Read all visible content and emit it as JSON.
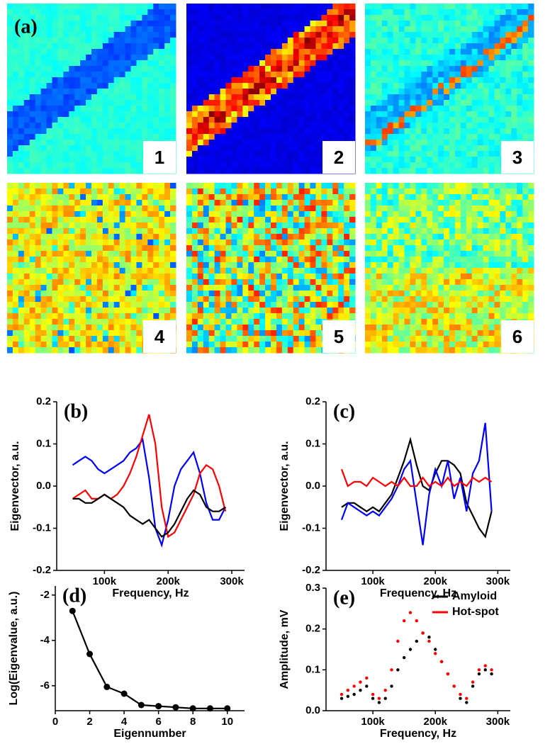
{
  "panel_a": {
    "label": "(a)",
    "tiles": [
      "1",
      "2",
      "3",
      "4",
      "5",
      "6"
    ]
  },
  "chart_data": [
    {
      "type": "line",
      "label": "(b)",
      "xlabel": "Frequency, Hz",
      "ylabel": "Eigenvector, a.u.",
      "x": [
        50000,
        60000,
        70000,
        80000,
        90000,
        100000,
        110000,
        120000,
        130000,
        140000,
        150000,
        160000,
        170000,
        180000,
        190000,
        200000,
        210000,
        220000,
        230000,
        240000,
        250000,
        260000,
        270000,
        280000,
        290000
      ],
      "series": [
        {
          "color": "#0000ff",
          "values": [
            0.05,
            0.06,
            0.07,
            0.06,
            0.04,
            0.03,
            0.04,
            0.05,
            0.06,
            0.08,
            0.09,
            0.11,
            0.02,
            -0.1,
            -0.14,
            -0.08,
            0.0,
            0.04,
            0.06,
            0.08,
            0.03,
            -0.04,
            -0.08,
            -0.08,
            -0.05
          ]
        },
        {
          "color": "#ff0000",
          "values": [
            -0.03,
            -0.02,
            -0.01,
            -0.03,
            -0.03,
            -0.02,
            -0.03,
            -0.02,
            0.0,
            0.03,
            0.07,
            0.12,
            0.17,
            0.1,
            -0.05,
            -0.12,
            -0.11,
            -0.08,
            -0.05,
            -0.02,
            0.03,
            0.05,
            0.04,
            0.0,
            -0.06
          ]
        },
        {
          "color": "#000000",
          "values": [
            -0.03,
            -0.03,
            -0.04,
            -0.04,
            -0.03,
            -0.02,
            -0.03,
            -0.04,
            -0.05,
            -0.07,
            -0.08,
            -0.09,
            -0.08,
            -0.1,
            -0.12,
            -0.11,
            -0.09,
            -0.06,
            -0.03,
            -0.01,
            -0.02,
            -0.05,
            -0.06,
            -0.06,
            -0.05
          ]
        }
      ],
      "xlim": [
        25000,
        320000
      ],
      "ylim": [
        -0.2,
        0.2
      ],
      "xticks": [
        {
          "value": 100000,
          "label": "100k"
        },
        {
          "value": 200000,
          "label": "200k"
        },
        {
          "value": 300000,
          "label": "300k"
        }
      ],
      "yticks": [
        -0.2,
        -0.1,
        {
          "value": 0,
          "label": "0.0"
        },
        0.1,
        0.2
      ]
    },
    {
      "type": "line",
      "label": "(c)",
      "xlabel": "Frequency, Hz",
      "ylabel": "Eigenvector, a.u.",
      "x": [
        50000,
        60000,
        70000,
        80000,
        90000,
        100000,
        110000,
        120000,
        130000,
        140000,
        150000,
        160000,
        170000,
        180000,
        190000,
        200000,
        210000,
        220000,
        230000,
        240000,
        250000,
        260000,
        270000,
        280000,
        290000
      ],
      "series": [
        {
          "color": "#000000",
          "values": [
            -0.05,
            -0.04,
            -0.04,
            -0.05,
            -0.06,
            -0.05,
            -0.06,
            -0.04,
            -0.02,
            0.02,
            0.06,
            0.11,
            0.05,
            0.0,
            -0.01,
            0.03,
            0.06,
            0.06,
            0.05,
            0.03,
            -0.04,
            -0.07,
            -0.1,
            -0.12,
            -0.06
          ]
        },
        {
          "color": "#0000ff",
          "values": [
            -0.08,
            -0.04,
            -0.05,
            -0.06,
            -0.07,
            -0.06,
            -0.07,
            -0.05,
            -0.03,
            0.0,
            0.04,
            0.06,
            -0.04,
            -0.14,
            -0.02,
            0.04,
            0.0,
            0.06,
            -0.03,
            0.02,
            -0.06,
            0.03,
            0.06,
            0.15,
            -0.06
          ]
        },
        {
          "color": "#ff0000",
          "values": [
            0.04,
            0.0,
            0.01,
            0.01,
            0.0,
            0.02,
            0.01,
            0.0,
            0.01,
            0.0,
            0.02,
            0.0,
            0.0,
            0.02,
            0.0,
            0.01,
            0.0,
            0.02,
            0.0,
            0.01,
            0.0,
            0.02,
            0.01,
            0.02,
            0.01
          ]
        }
      ],
      "xlim": [
        25000,
        320000
      ],
      "ylim": [
        -0.2,
        0.2
      ],
      "xticks": [
        {
          "value": 100000,
          "label": "100k"
        },
        {
          "value": 200000,
          "label": "200k"
        },
        {
          "value": 300000,
          "label": "300k"
        }
      ],
      "yticks": [
        -0.2,
        -0.1,
        {
          "value": 0,
          "label": "0.0"
        },
        0.1,
        0.2
      ]
    },
    {
      "type": "line",
      "markers": true,
      "label": "(d)",
      "xlabel": "Eigennumber",
      "ylabel": "Log(Eigenvalue, a.u.)",
      "x": [
        1,
        2,
        3,
        4,
        5,
        6,
        7,
        8,
        9,
        10
      ],
      "series": [
        {
          "color": "#000000",
          "values": [
            -2.7,
            -4.6,
            -6.05,
            -6.35,
            -6.85,
            -6.9,
            -6.95,
            -7.0,
            -7.0,
            -7.0
          ]
        }
      ],
      "xlim": [
        0,
        11
      ],
      "ylim": [
        -7.1,
        -1.6
      ],
      "xticks": [
        0,
        2,
        4,
        6,
        8,
        10
      ],
      "yticks": [
        -6,
        -4,
        -2
      ]
    },
    {
      "type": "scatter",
      "label": "(e)",
      "xlabel": "Frequency, Hz",
      "ylabel": "Amplitude, mV",
      "legend": "upper right",
      "x": [
        50000,
        60000,
        70000,
        80000,
        90000,
        100000,
        110000,
        120000,
        130000,
        140000,
        150000,
        160000,
        170000,
        180000,
        190000,
        200000,
        210000,
        220000,
        230000,
        240000,
        250000,
        260000,
        270000,
        280000,
        290000
      ],
      "series": [
        {
          "name": "Amyloid",
          "color": "#000000",
          "values": [
            0.03,
            0.035,
            0.04,
            0.05,
            0.06,
            0.03,
            0.02,
            0.03,
            0.06,
            0.1,
            0.13,
            0.15,
            0.17,
            0.19,
            0.18,
            0.15,
            0.12,
            0.09,
            0.06,
            0.03,
            0.02,
            0.06,
            0.09,
            0.1,
            0.09
          ]
        },
        {
          "name": "Hot-spot",
          "color": "#ff0000",
          "values": [
            0.04,
            0.05,
            0.06,
            0.07,
            0.08,
            0.04,
            0.03,
            0.05,
            0.1,
            0.17,
            0.22,
            0.24,
            0.22,
            0.19,
            0.17,
            0.14,
            0.12,
            0.09,
            0.06,
            0.04,
            0.03,
            0.07,
            0.1,
            0.11,
            0.1
          ]
        }
      ],
      "xlim": [
        25000,
        320000
      ],
      "ylim": [
        0,
        0.3
      ],
      "xticks": [
        {
          "value": 100000,
          "label": "100k"
        },
        {
          "value": 200000,
          "label": "200k"
        },
        {
          "value": 300000,
          "label": "300k"
        }
      ],
      "yticks": [
        {
          "value": 0,
          "label": "0.0"
        },
        0.1,
        0.2,
        0.3
      ]
    }
  ]
}
